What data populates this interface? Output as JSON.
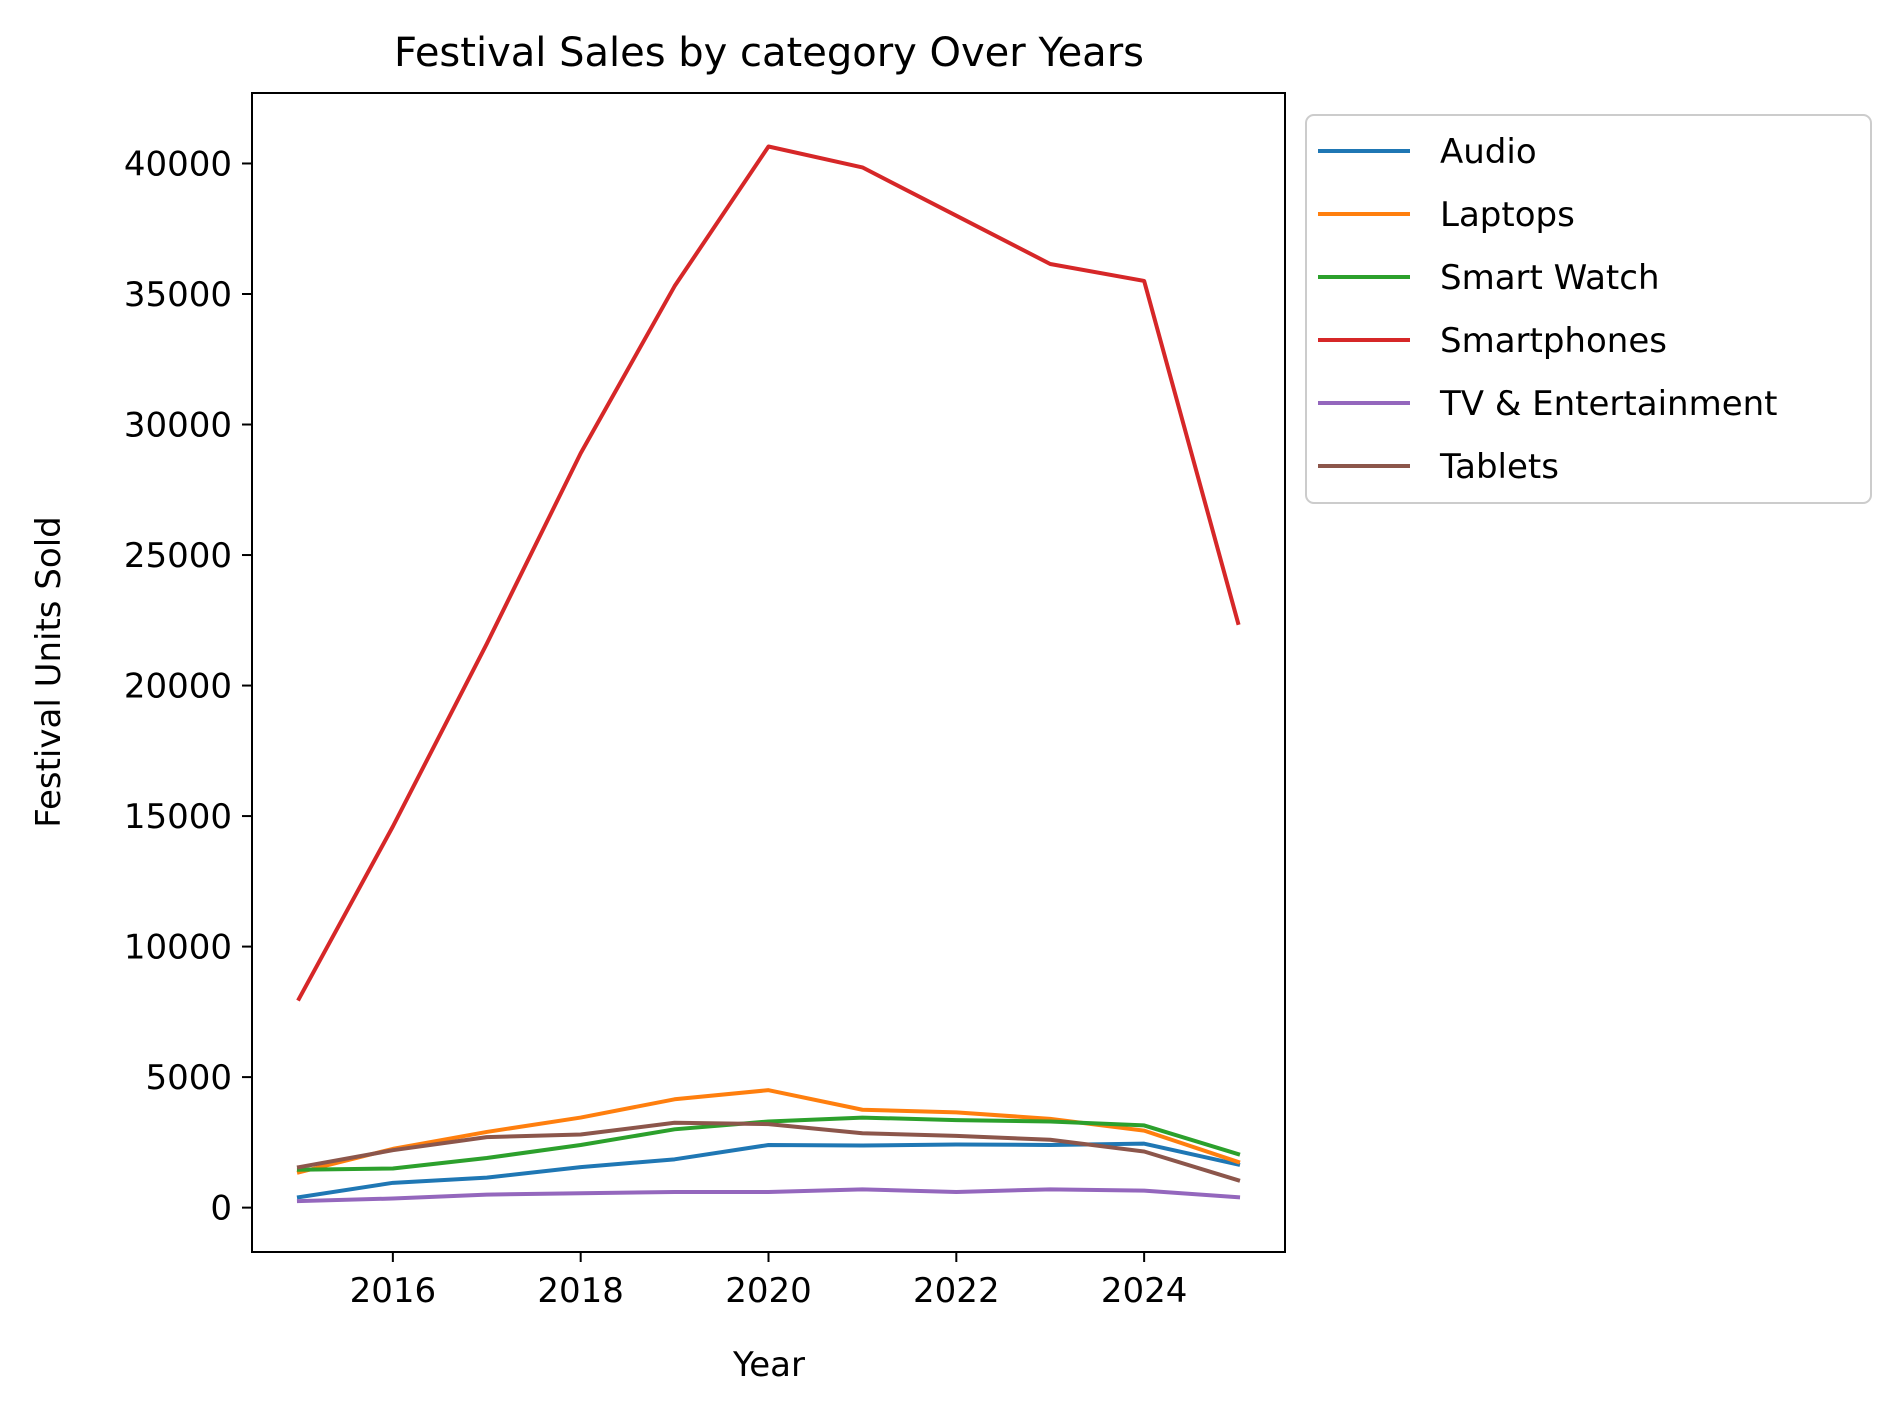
{
  "chart_data": {
    "type": "line",
    "title": "Festival Sales by category Over Years",
    "xlabel": "Year",
    "ylabel": "Festival Units Sold",
    "x": [
      2015,
      2016,
      2017,
      2018,
      2019,
      2020,
      2021,
      2022,
      2023,
      2024,
      2025
    ],
    "xlim": [
      2014.5,
      2025.5
    ],
    "ylim": [
      -1700,
      42700
    ],
    "xticks": [
      2016,
      2018,
      2020,
      2022,
      2024
    ],
    "xtick_labels": [
      "2016",
      "2018",
      "2020",
      "2022",
      "2024"
    ],
    "yticks": [
      0,
      5000,
      10000,
      15000,
      20000,
      25000,
      30000,
      35000,
      40000
    ],
    "ytick_labels": [
      "0",
      "5000",
      "10000",
      "15000",
      "20000",
      "25000",
      "30000",
      "35000",
      "40000"
    ],
    "grid": false,
    "legend_position": "outside-top-right",
    "series": [
      {
        "name": "Audio",
        "color": "#1f77b4",
        "values": [
          400,
          950,
          1150,
          1550,
          1850,
          2400,
          2380,
          2420,
          2400,
          2450,
          1650
        ]
      },
      {
        "name": "Laptops",
        "color": "#ff7f0e",
        "values": [
          1350,
          2250,
          2900,
          3450,
          4150,
          4500,
          3750,
          3650,
          3400,
          2950,
          1750
        ]
      },
      {
        "name": "Smart Watch",
        "color": "#2ca02c",
        "values": [
          1450,
          1500,
          1900,
          2400,
          3000,
          3300,
          3450,
          3350,
          3300,
          3150,
          2050
        ]
      },
      {
        "name": "Smartphones",
        "color": "#d62728",
        "values": [
          8000,
          14600,
          21600,
          28900,
          35300,
          40650,
          39850,
          38000,
          36150,
          35500,
          22400
        ]
      },
      {
        "name": "TV & Entertainment",
        "color": "#9467bd",
        "values": [
          250,
          350,
          500,
          550,
          600,
          600,
          700,
          600,
          700,
          650,
          400
        ]
      },
      {
        "name": "Tablets",
        "color": "#8c564b",
        "values": [
          1550,
          2200,
          2700,
          2800,
          3250,
          3200,
          2850,
          2750,
          2600,
          2150,
          1050
        ]
      }
    ]
  }
}
